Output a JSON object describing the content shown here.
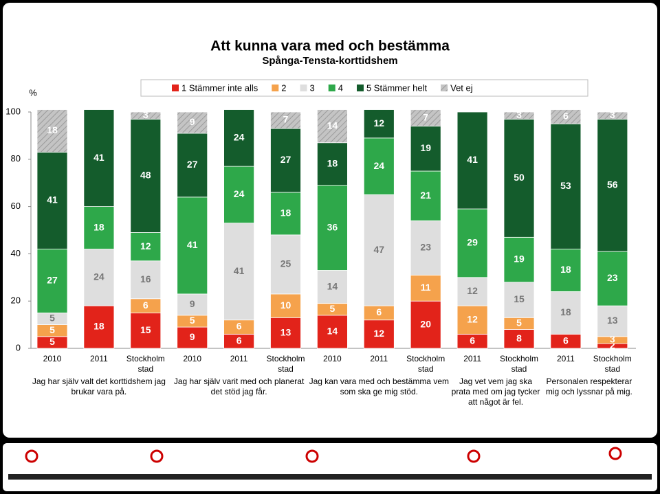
{
  "chart_data": {
    "type": "stacked-bar",
    "title": "Att kunna vara med och bestämma",
    "subtitle": "Spånga-Tensta-korttidshem",
    "y_label": "%",
    "ylim": [
      0,
      100
    ],
    "yticks": [
      0,
      20,
      40,
      60,
      80,
      100
    ],
    "groups": [
      {
        "label": "Jag har själv valt det korttidshem jag brukar vara på.",
        "categories": [
          "2010",
          "2011",
          "Stockholm stad"
        ]
      },
      {
        "label": "Jag har själv varit med och planerat det stöd jag får.",
        "categories": [
          "2010",
          "2011",
          "Stockholm stad"
        ]
      },
      {
        "label": "Jag kan vara med och bestämma vem som ska ge mig stöd.",
        "categories": [
          "2010",
          "2011",
          "Stockholm stad"
        ]
      },
      {
        "label": "Jag vet vem jag ska prata med om jag tycker att något är fel.",
        "categories": [
          "2011",
          "Stockholm stad"
        ]
      },
      {
        "label": "Personalen respekterar mig och lyssnar på mig.",
        "categories": [
          "2011",
          "Stockholm stad"
        ]
      }
    ],
    "series": [
      {
        "name": "1 Stämmer inte alls",
        "color": "#e2231a",
        "values": [
          5,
          18,
          15,
          9,
          6,
          13,
          14,
          12,
          20,
          6,
          8,
          6,
          2
        ]
      },
      {
        "name": "2",
        "color": "#f5a24c",
        "values": [
          5,
          null,
          6,
          5,
          6,
          10,
          5,
          6,
          11,
          12,
          5,
          null,
          3
        ]
      },
      {
        "name": "3",
        "color": "#dedede",
        "values": [
          5,
          24,
          16,
          9,
          41,
          25,
          14,
          47,
          23,
          12,
          15,
          18,
          13
        ]
      },
      {
        "name": "4",
        "color": "#2ea84a",
        "values": [
          27,
          18,
          12,
          41,
          24,
          18,
          36,
          24,
          21,
          29,
          19,
          18,
          23
        ]
      },
      {
        "name": "5 Stämmer helt",
        "color": "#145c2c",
        "values": [
          41,
          41,
          48,
          27,
          24,
          27,
          18,
          12,
          19,
          41,
          50,
          53,
          56
        ]
      },
      {
        "name": "Vet ej",
        "color": "#b8b8b8",
        "values": [
          18,
          null,
          3,
          9,
          null,
          7,
          14,
          null,
          7,
          null,
          3,
          6,
          3
        ]
      }
    ]
  }
}
